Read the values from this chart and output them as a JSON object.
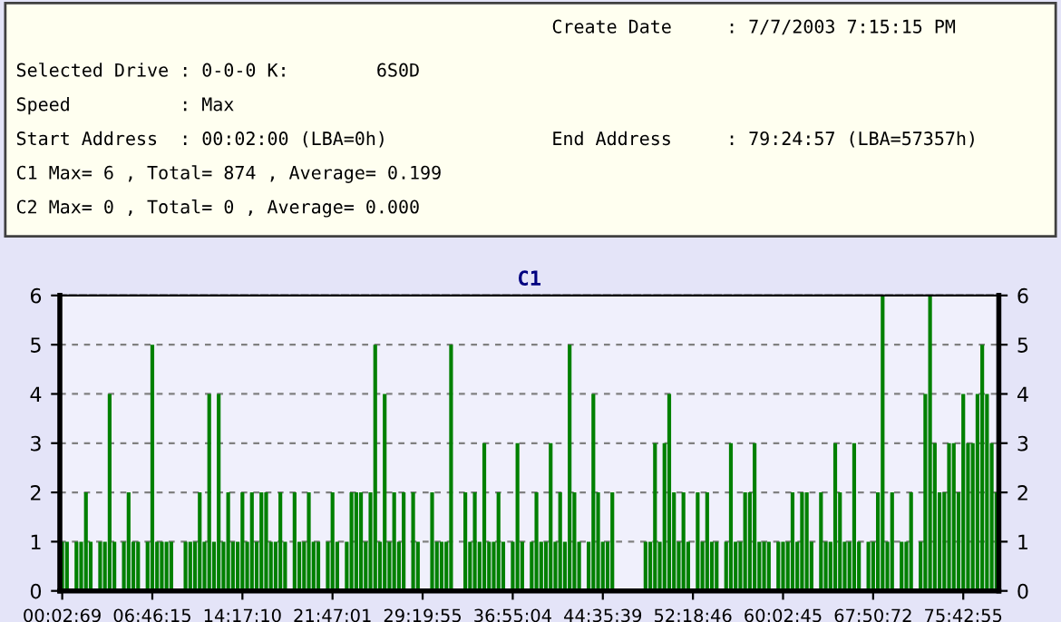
{
  "chart_data": {
    "type": "bar",
    "title": "C1",
    "annotations": [
      "Create Date     : 7/7/2003 7:15:15 PM",
      "Selected Drive : 0-0-0 K:        6S0D",
      "Speed          : Max",
      "Start Address  : 00:02:00 (LBA=0h)",
      "End Address     : 79:24:57 (LBA=57357h)",
      "C1 Max= 6 , Total= 874 , Average= 0.199",
      "C2 Max= 0 , Total= 0 , Average= 0.000"
    ],
    "categories": [
      "00:02:69",
      null,
      null,
      null,
      null,
      null,
      null,
      null,
      null,
      null,
      null,
      null,
      null,
      null,
      null,
      null,
      null,
      null,
      null,
      "06:46:15",
      null,
      null,
      null,
      null,
      null,
      null,
      null,
      null,
      null,
      null,
      null,
      null,
      null,
      null,
      null,
      null,
      null,
      null,
      "14:17:10",
      null,
      null,
      null,
      null,
      null,
      null,
      null,
      null,
      null,
      null,
      null,
      null,
      null,
      null,
      null,
      null,
      null,
      null,
      "21:47:01",
      null,
      null,
      null,
      null,
      null,
      null,
      null,
      null,
      null,
      null,
      null,
      null,
      null,
      null,
      null,
      null,
      null,
      null,
      "29:19:55",
      null,
      null,
      null,
      null,
      null,
      null,
      null,
      null,
      null,
      null,
      null,
      null,
      null,
      null,
      null,
      null,
      null,
      null,
      "36:55:04",
      null,
      null,
      null,
      null,
      null,
      null,
      null,
      null,
      null,
      null,
      null,
      null,
      null,
      null,
      null,
      null,
      null,
      null,
      "44:35:39",
      null,
      null,
      null,
      null,
      null,
      null,
      null,
      null,
      null,
      null,
      null,
      null,
      null,
      null,
      null,
      null,
      null,
      null,
      "52:18:46",
      null,
      null,
      null,
      null,
      null,
      null,
      null,
      null,
      null,
      null,
      null,
      null,
      null,
      null,
      null,
      null,
      null,
      null,
      "60:02:45",
      null,
      null,
      null,
      null,
      null,
      null,
      null,
      null,
      null,
      null,
      null,
      null,
      null,
      null,
      null,
      null,
      null,
      null,
      "67:50:72",
      null,
      null,
      null,
      null,
      null,
      null,
      null,
      null,
      null,
      null,
      null,
      null,
      null,
      null,
      null,
      null,
      null,
      null,
      "75:42:55",
      null,
      null,
      null,
      null,
      null,
      null,
      null
    ],
    "values": [
      1,
      1,
      0,
      1,
      1,
      2,
      1,
      0,
      1,
      1,
      4,
      1,
      0,
      1,
      2,
      1,
      1,
      0,
      1,
      5,
      1,
      1,
      1,
      1,
      0,
      0,
      1,
      1,
      1,
      2,
      1,
      4,
      1,
      4,
      1,
      2,
      1,
      1,
      2,
      1,
      2,
      1,
      2,
      2,
      1,
      1,
      2,
      1,
      0,
      2,
      1,
      1,
      2,
      1,
      1,
      0,
      1,
      2,
      1,
      0,
      1,
      2,
      2,
      2,
      1,
      2,
      5,
      1,
      4,
      1,
      2,
      1,
      2,
      0,
      2,
      1,
      0,
      0,
      2,
      1,
      1,
      1,
      5,
      0,
      0,
      2,
      1,
      2,
      1,
      3,
      1,
      1,
      2,
      1,
      0,
      1,
      3,
      1,
      0,
      1,
      2,
      1,
      1,
      3,
      1,
      2,
      1,
      5,
      2,
      1,
      0,
      1,
      4,
      2,
      1,
      1,
      2,
      0,
      0,
      0,
      0,
      0,
      0,
      1,
      1,
      3,
      1,
      3,
      4,
      2,
      1,
      2,
      1,
      0,
      2,
      1,
      2,
      1,
      1,
      0,
      1,
      3,
      1,
      1,
      2,
      2,
      3,
      1,
      1,
      1,
      0,
      1,
      1,
      1,
      2,
      1,
      2,
      2,
      1,
      0,
      2,
      1,
      1,
      3,
      2,
      1,
      1,
      3,
      1,
      0,
      1,
      1,
      2,
      6,
      1,
      2,
      0,
      1,
      1,
      2,
      0,
      1,
      4,
      6,
      3,
      2,
      2,
      3,
      3,
      2,
      4,
      3,
      3,
      4,
      5,
      4,
      3,
      2
    ],
    "color": "#008000",
    "ylim": [
      0,
      6
    ],
    "yticks": [
      0,
      1,
      2,
      3,
      4,
      5,
      6
    ],
    "y2lim": [
      0,
      6
    ],
    "y2ticks": [
      0,
      1,
      2,
      3,
      4,
      5,
      6
    ],
    "grid": "y"
  }
}
